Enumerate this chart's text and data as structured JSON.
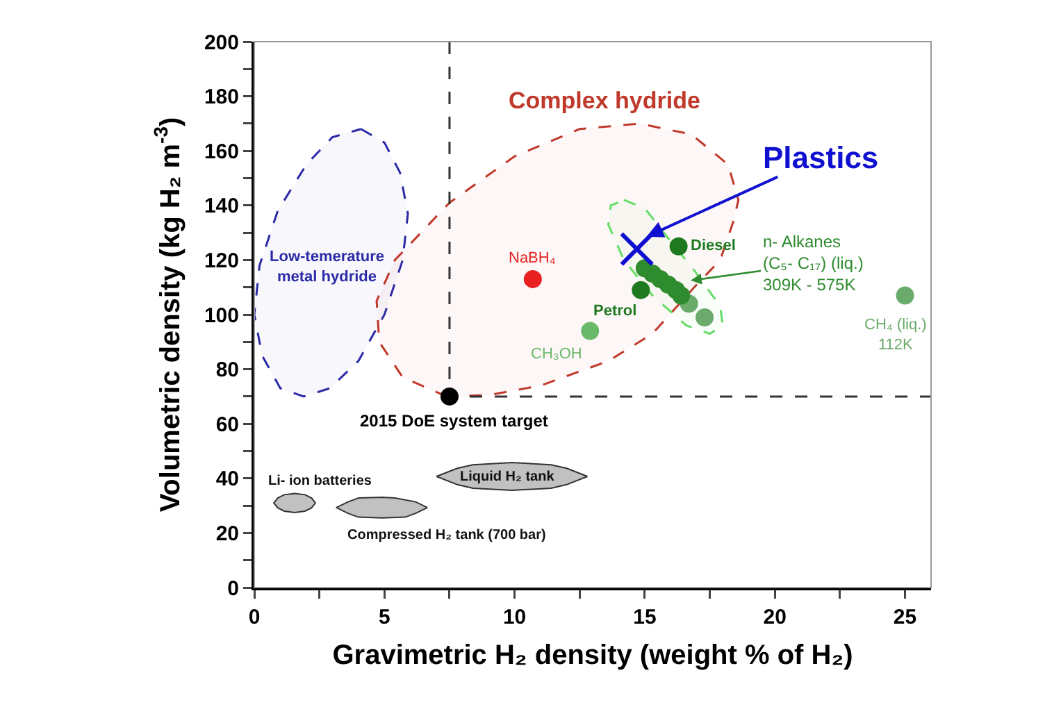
{
  "chart_data": {
    "type": "scatter",
    "xlabel": "Gravimetric H₂ density (weight % of H₂)",
    "ylabel": "Volumetric density (kg H₂ m$^{-3}$)",
    "xlim": [
      0,
      26
    ],
    "ylim": [
      0,
      200
    ],
    "xticks": [
      0,
      {
        "value": 2.5,
        "label": null
      },
      5,
      {
        "value": 7.5,
        "label": null
      },
      10,
      {
        "value": 12.5,
        "label": null
      },
      15,
      {
        "value": 17.5,
        "label": null
      },
      20,
      {
        "value": 22.5,
        "label": null
      },
      25
    ],
    "yticks": [
      0,
      {
        "value": 10,
        "label": null
      },
      20,
      {
        "value": 30,
        "label": null
      },
      40,
      {
        "value": 50,
        "label": null
      },
      60,
      {
        "value": 70,
        "label": null
      },
      80,
      {
        "value": 90,
        "label": null
      },
      100,
      {
        "value": 110,
        "label": null
      },
      120,
      {
        "value": 130,
        "label": null
      },
      140,
      {
        "value": 150,
        "label": null
      },
      160,
      {
        "value": 170,
        "label": null
      },
      180,
      {
        "value": 190,
        "label": null
      },
      200
    ],
    "grid": false,
    "legend": false,
    "series": [
      {
        "type": "area",
        "name": "Low-temerature\nmetal hydride",
        "color": "#2b2ba8",
        "line_style": "dashed",
        "x": [
          4.1,
          5.0,
          5.6,
          5.9,
          5.7,
          5.0,
          4.0,
          2.9,
          1.9,
          1.0,
          0.3,
          0,
          0.2,
          0.9,
          2.0,
          3.0,
          4.1
        ],
        "values": [
          168,
          163,
          152,
          137,
          120,
          100,
          83,
          73,
          70,
          73,
          85,
          100,
          118,
          138,
          155,
          165,
          168
        ]
      },
      {
        "type": "area",
        "name": "Complex hydride",
        "color": "#c0392b",
        "line_style": "dashed",
        "x": [
          7.4,
          5.7,
          4.8,
          4.7,
          5.4,
          7.5,
          10,
          12.5,
          14.8,
          16.8,
          18.2,
          18.6,
          18.4,
          17.9,
          16.9,
          15.3,
          13.6,
          11,
          9,
          7.4
        ],
        "values": [
          70,
          77,
          90,
          105,
          120,
          141,
          158,
          168,
          170,
          166,
          155,
          142,
          134,
          120,
          110,
          93,
          83,
          74,
          70.5,
          70
        ]
      },
      {
        "type": "area",
        "color": "#66dd66",
        "line_style": "dashed",
        "x": [
          14.2,
          15.0,
          15.9,
          17.0,
          17.9,
          18.0,
          17.5,
          16.6,
          15.3,
          14.2,
          13.6,
          13.7,
          14.2
        ],
        "values": [
          142,
          139,
          128,
          115,
          103,
          96,
          93,
          96,
          107,
          120,
          133,
          140,
          142
        ]
      },
      {
        "type": "line",
        "color": "#333333",
        "line_style": "dashed",
        "x": [
          7.5,
          7.5,
          26
        ],
        "values": [
          200,
          70,
          70
        ]
      },
      {
        "type": "area",
        "name": "Li- ion batteries",
        "color": "#333333",
        "x": [
          2.35,
          2.2,
          1.95,
          1.55,
          1.15,
          0.9,
          0.75,
          0.9,
          1.15,
          1.55,
          1.95,
          2.2,
          2.35
        ],
        "values": [
          31,
          32.8,
          34,
          34.5,
          34,
          32.8,
          31,
          29.2,
          28,
          27.5,
          28,
          29.2,
          31
        ]
      },
      {
        "type": "area",
        "name": "Compressed H₂ tank (700 bar)",
        "color": "#333333",
        "x": [
          6.65,
          6.2,
          5.4,
          4.9,
          4.0,
          3.6,
          3.15,
          3.6,
          4.0,
          4.9,
          5.8,
          6.2,
          6.65
        ],
        "values": [
          29.3,
          31.4,
          32.8,
          33.1,
          32.8,
          31.4,
          29.3,
          27.2,
          25.8,
          25.5,
          25.8,
          27.2,
          29.3
        ]
      },
      {
        "type": "area",
        "name": "Liquid H₂ tank",
        "color": "#333333",
        "x": [
          12.8,
          12.0,
          11.4,
          9.9,
          8.4,
          7.8,
          7.0,
          7.8,
          8.4,
          9.9,
          11.4,
          12.0,
          12.8
        ],
        "values": [
          40.7,
          43.7,
          45,
          45.8,
          45,
          43.7,
          40.7,
          37.7,
          36.4,
          35.6,
          36.4,
          37.7,
          40.7
        ]
      },
      {
        "name": "NaBH₄",
        "color": "#e82020",
        "marker": "circle",
        "x": [
          10.7
        ],
        "values": [
          113
        ]
      },
      {
        "name": "CH₃OH",
        "color": "#6ab86a",
        "marker": "circle",
        "x": [
          12.9
        ],
        "values": [
          94
        ]
      },
      {
        "color": "#6aaa6a",
        "marker": "circle",
        "x": [
          16.7,
          17.3
        ],
        "values": [
          104,
          99
        ]
      },
      {
        "name": "n- Alkanes\n(C₅- C₁₇) (liq.)\n309K - 575K",
        "color": "#2e8b2e",
        "marker": "circle",
        "x": [
          15.0,
          15.3,
          15.6,
          15.9,
          16.2,
          16.4
        ],
        "values": [
          117,
          115,
          113,
          111,
          109,
          107
        ]
      },
      {
        "name": "Petrol",
        "color": "#1f7a1f",
        "marker": "circle",
        "x": [
          14.85
        ],
        "values": [
          109
        ]
      },
      {
        "name": "Diesel",
        "color": "#1f7a1f",
        "marker": "circle",
        "x": [
          16.3
        ],
        "values": [
          125
        ]
      },
      {
        "name": "CH₄ (liq.)\n112K",
        "color": "#6aaa6a",
        "marker": "circle",
        "x": [
          25
        ],
        "values": [
          107
        ]
      },
      {
        "name": "Plastics",
        "color": "#1010d0",
        "marker": "cross",
        "x": [
          14.7
        ],
        "values": [
          124
        ]
      },
      {
        "name": "2015 DoE system target",
        "color": "#000000",
        "marker": "circle",
        "x": [
          7.5
        ],
        "values": [
          70
        ]
      }
    ]
  }
}
